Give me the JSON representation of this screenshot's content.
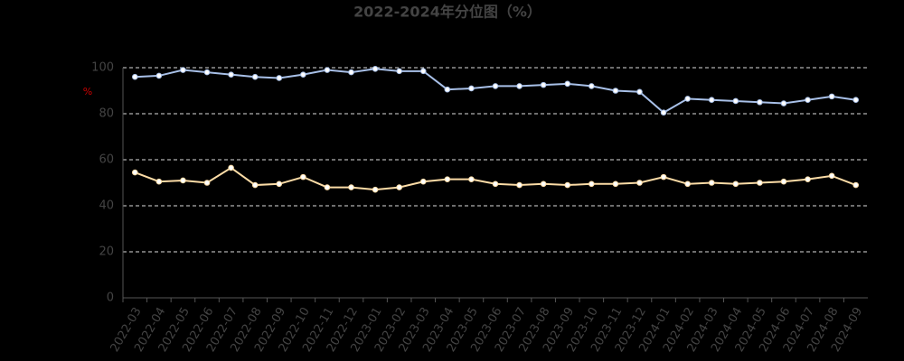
{
  "chart_data": {
    "type": "line",
    "title": "2022-2024年分位图（%）",
    "y_label": "%",
    "categories": [
      "2022-03",
      "2022-04",
      "2022-05",
      "2022-06",
      "2022-07",
      "2022-08",
      "2022-09",
      "2022-10",
      "2022-11",
      "2022-12",
      "2023-01",
      "2023-02",
      "2023-03",
      "2023-04",
      "2023-05",
      "2023-06",
      "2023-07",
      "2023-08",
      "2023-09",
      "2023-10",
      "2023-11",
      "2023-12",
      "2024-01",
      "2024-02",
      "2024-03",
      "2024-04",
      "2024-05",
      "2024-06",
      "2024-07",
      "2024-08",
      "2024-09"
    ],
    "series": [
      {
        "color": "#a8c0e8",
        "values": [
          96,
          96.5,
          99,
          98,
          97,
          96,
          95.5,
          97,
          99,
          98,
          99.5,
          98.5,
          98.5,
          90.5,
          91,
          92,
          92,
          92.5,
          93,
          92,
          90,
          89.5,
          80.5,
          86.5,
          86,
          85.5,
          85,
          84.5,
          86,
          87.5,
          86
        ]
      },
      {
        "color": "#fcdca6",
        "values": [
          54.5,
          50.5,
          51,
          50,
          56.5,
          49,
          49.5,
          52.5,
          48,
          48,
          47,
          48,
          50.5,
          51.5,
          51.5,
          49.5,
          49,
          49.5,
          49,
          49.5,
          49.5,
          50,
          52.5,
          49.5,
          50,
          49.5,
          50,
          50.5,
          51.5,
          53,
          49
        ]
      }
    ],
    "ylim": [
      0,
      100
    ],
    "yticks": [
      0,
      20,
      40,
      60,
      80,
      100
    ],
    "grid": true
  }
}
